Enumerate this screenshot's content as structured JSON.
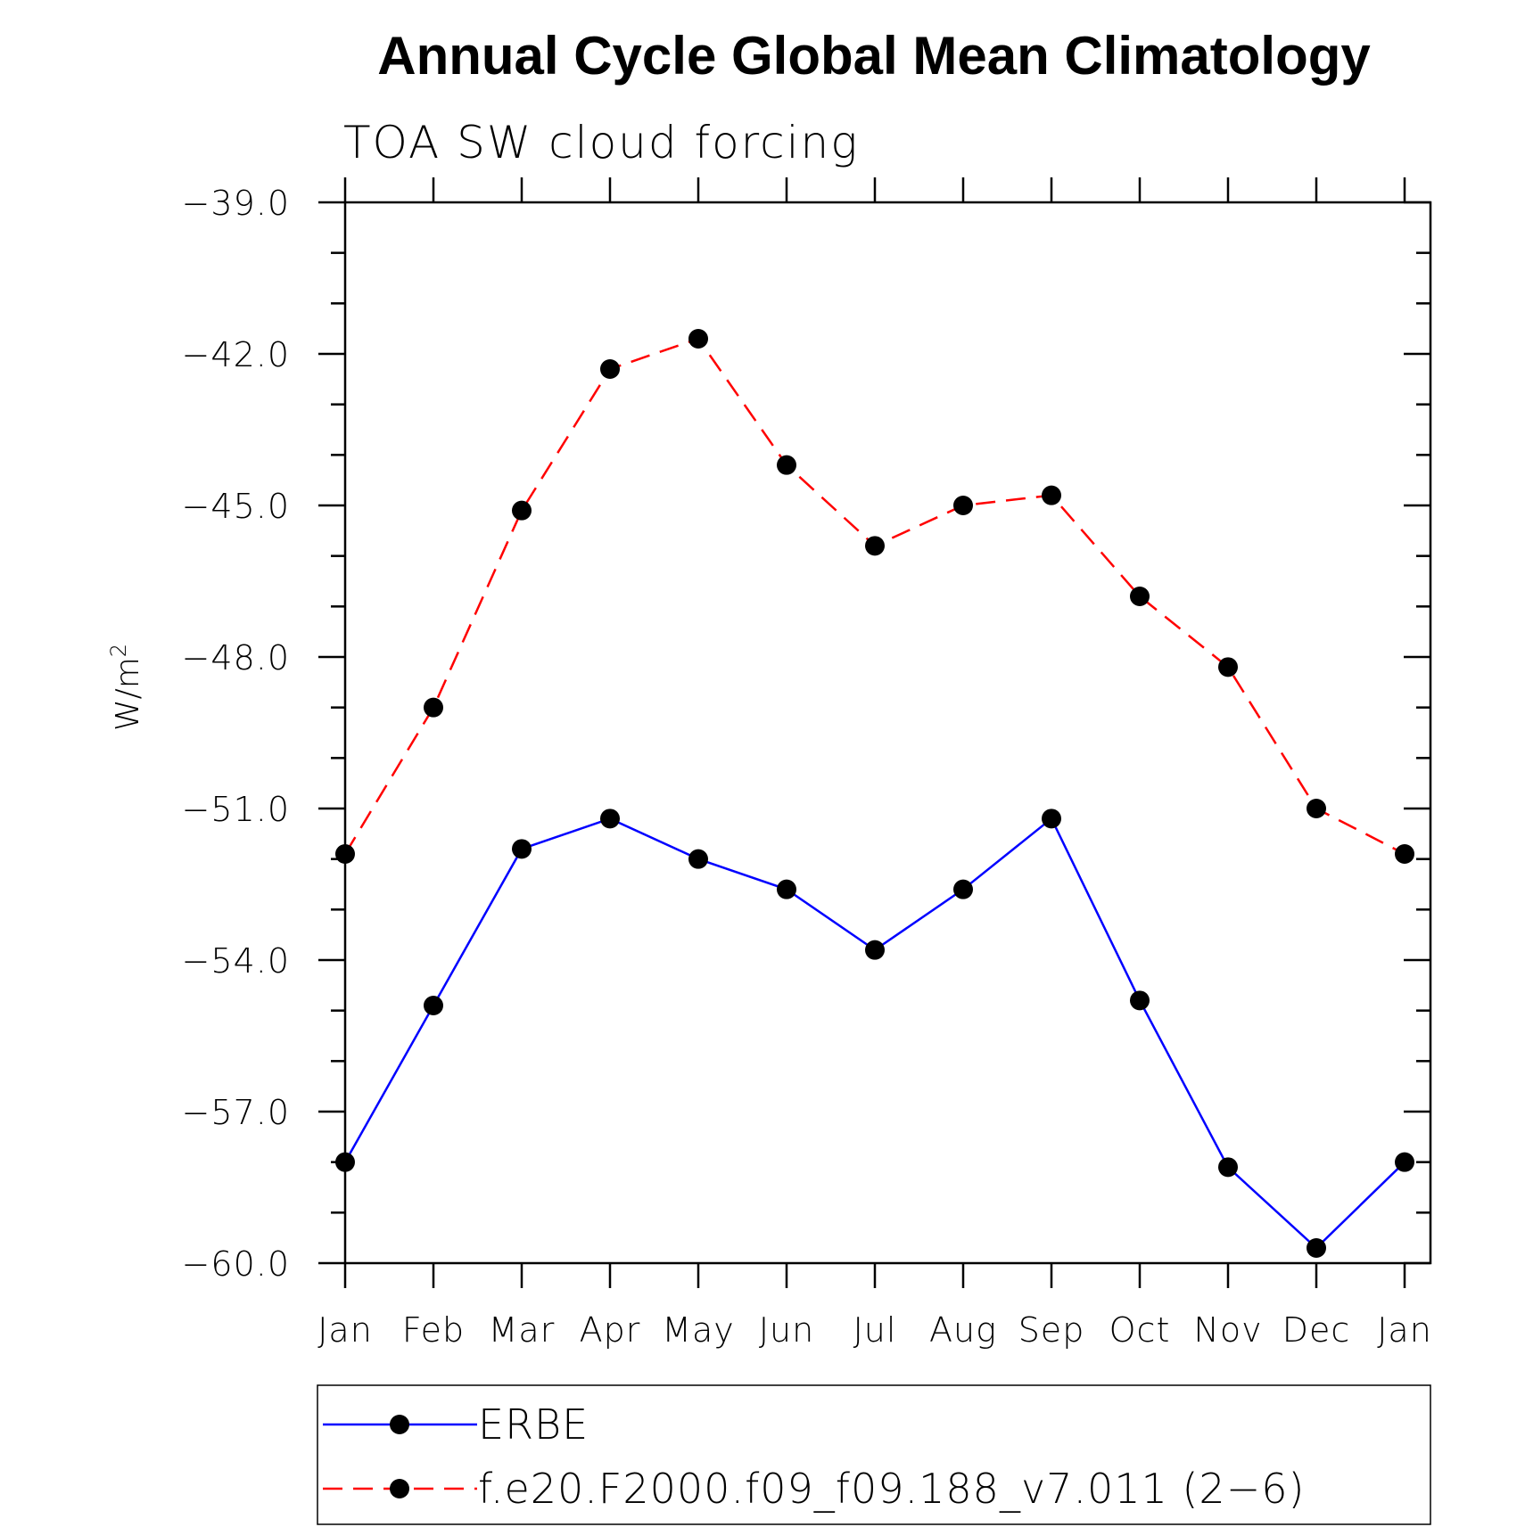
{
  "chart_data": {
    "type": "line",
    "title": "Annual Cycle Global Mean Climatology",
    "subtitle": "TOA SW cloud forcing",
    "xlabel": "",
    "ylabel": "W/m",
    "ylabel_superscript": "2",
    "categories": [
      "Jan",
      "Feb",
      "Mar",
      "Apr",
      "May",
      "Jun",
      "Jul",
      "Aug",
      "Sep",
      "Oct",
      "Nov",
      "Dec",
      "Jan"
    ],
    "ylim": [
      -60.0,
      -39.0
    ],
    "yticks": [
      "-60.0",
      "-57.0",
      "-54.0",
      "-51.0",
      "-48.0",
      "-45.0",
      "-42.0",
      "-39.0"
    ],
    "grid": false,
    "legend_position": "bottom",
    "series": [
      {
        "name": "ERBE",
        "color": "#0000ff",
        "line_style": "solid",
        "values": [
          -58.0,
          -54.9,
          -51.8,
          -51.2,
          -52.0,
          -52.6,
          -53.8,
          -52.6,
          -51.2,
          -54.8,
          -58.1,
          -59.7,
          -58.0
        ]
      },
      {
        "name": "f.e20.F2000.f09_f09.188_v7.011 (2-6)",
        "color": "#ff0000",
        "line_style": "dashed",
        "values": [
          -51.9,
          -49.0,
          -45.1,
          -42.3,
          -41.7,
          -44.2,
          -45.8,
          -45.0,
          -44.8,
          -46.8,
          -48.2,
          -51.0,
          -51.9
        ]
      }
    ]
  }
}
